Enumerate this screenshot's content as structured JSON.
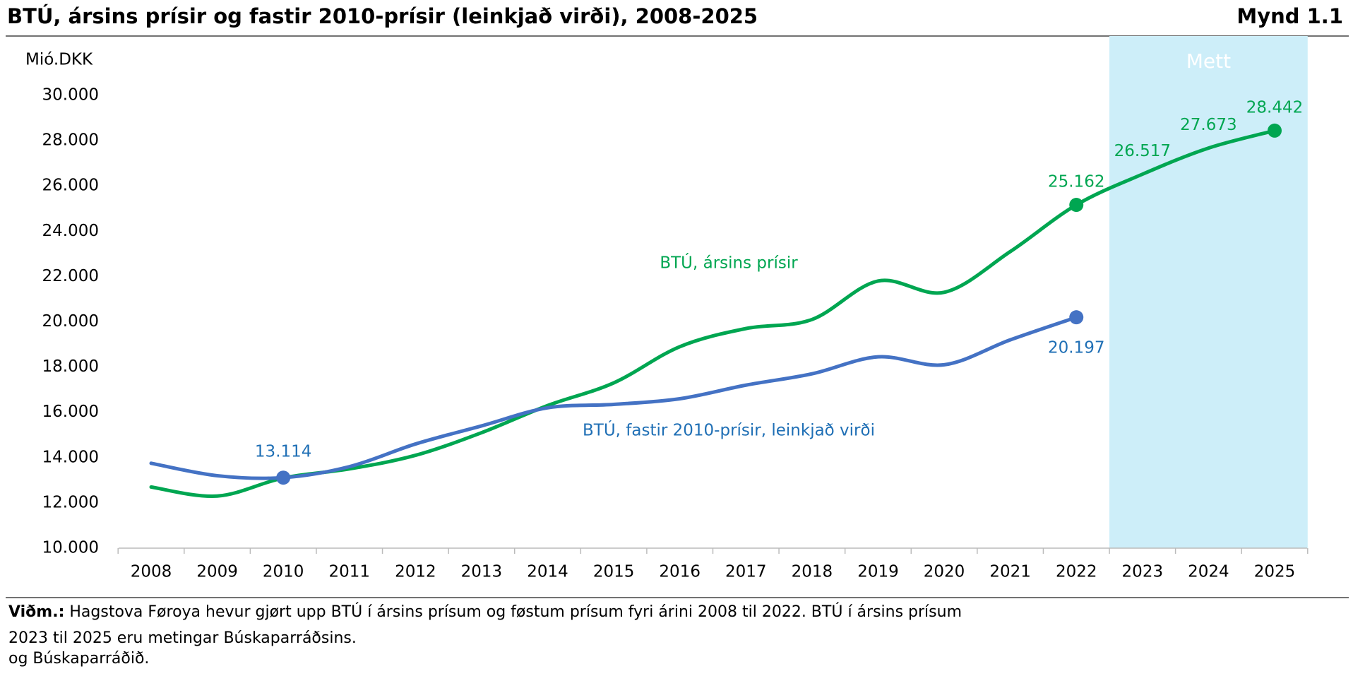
{
  "chart_data": {
    "type": "line",
    "title": "BTÚ, ársins prísir og fastir 2010-prísir (leinkjað virði), 2008-2025",
    "figure_label": "Mynd 1.1",
    "y_label": "Mió.DKK",
    "shaded_label": "Mett",
    "shaded_range": [
      "2023",
      "2025"
    ],
    "shaded_color": "#cdeef9",
    "categories": [
      "2008",
      "2009",
      "2010",
      "2011",
      "2012",
      "2013",
      "2014",
      "2015",
      "2016",
      "2017",
      "2018",
      "2019",
      "2020",
      "2021",
      "2022",
      "2023",
      "2024",
      "2025"
    ],
    "ylim": [
      10000,
      30000
    ],
    "yticks": [
      {
        "value": 10000,
        "label": "10.000"
      },
      {
        "value": 12000,
        "label": "12.000"
      },
      {
        "value": 14000,
        "label": "14.000"
      },
      {
        "value": 16000,
        "label": "16.000"
      },
      {
        "value": 18000,
        "label": "18.000"
      },
      {
        "value": 20000,
        "label": "20.000"
      },
      {
        "value": 22000,
        "label": "22.000"
      },
      {
        "value": 24000,
        "label": "24.000"
      },
      {
        "value": 26000,
        "label": "26.000"
      },
      {
        "value": 28000,
        "label": "28.000"
      },
      {
        "value": 30000,
        "label": "30.000"
      }
    ],
    "series": [
      {
        "name": "BTÚ, ársins prísir",
        "color": "#00a651",
        "values": [
          12700,
          12300,
          13100,
          13500,
          14100,
          15100,
          16300,
          17300,
          18900,
          19700,
          20100,
          21800,
          21300,
          23100,
          25162,
          26517,
          27673,
          28442
        ],
        "value_labels": [
          null,
          null,
          null,
          null,
          null,
          null,
          null,
          null,
          null,
          null,
          null,
          null,
          null,
          null,
          "25.162",
          "26.517",
          "27.673",
          "28.442"
        ],
        "marker_indices": [
          14,
          17
        ]
      },
      {
        "name": "BTÚ, fastir 2010-prísir, leinkjað virði",
        "color": "#4472c4",
        "label_color": "#1f6fb5",
        "values": [
          13750,
          13200,
          13114,
          13600,
          14600,
          15400,
          16200,
          16350,
          16600,
          17200,
          17700,
          18450,
          18100,
          19200,
          20197,
          null,
          null,
          null
        ],
        "value_labels": [
          null,
          null,
          "13.114",
          null,
          null,
          null,
          null,
          null,
          null,
          null,
          null,
          null,
          null,
          null,
          "20.197",
          null,
          null,
          null
        ],
        "marker_indices": [
          2,
          14
        ]
      }
    ]
  },
  "notes": {
    "label": "Viðm.:",
    "lines": [
      "Hagstova Føroya hevur gjørt upp BTÚ í ársins prísum og føstum prísum fyri árini 2008 til 2022. BTÚ í ársins prísum",
      "2023 til 2025 eru metingar Búskaparráðsins.",
      "og Búskaparráðið."
    ]
  }
}
